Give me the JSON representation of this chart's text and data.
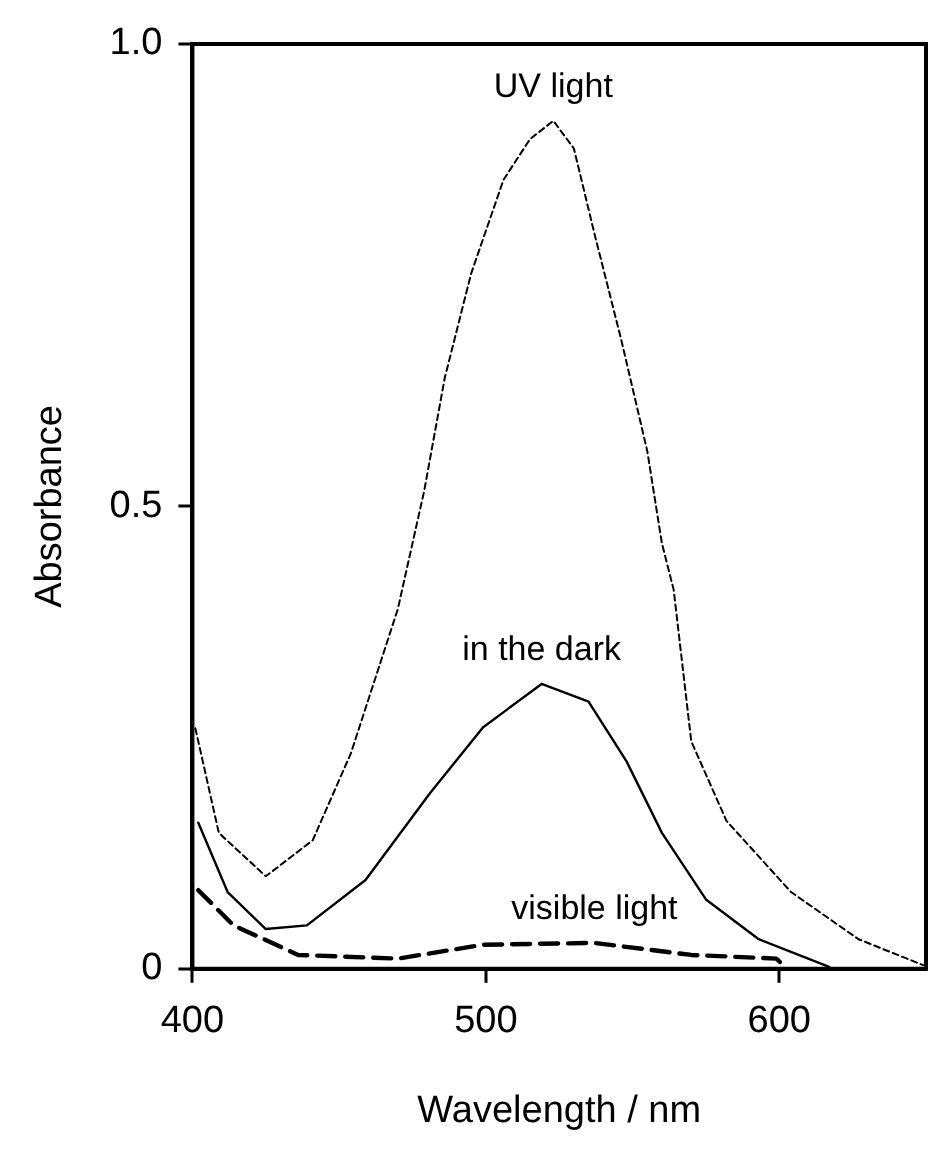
{
  "chart_data": {
    "type": "line",
    "xlabel": "Wavelength / nm",
    "ylabel": "Absorbance",
    "xlim": [
      400,
      650
    ],
    "xticks": [
      400,
      500,
      600
    ],
    "ylim": [
      0,
      1.0
    ],
    "yticks": [
      0,
      0.5,
      {
        "value": 1.0,
        "label": "1.0"
      }
    ],
    "grid": false,
    "legend": false,
    "marker": "none",
    "series": [
      {
        "name": "UV light",
        "color": "#000000",
        "line_style": "dotted",
        "x": [
          401,
          409,
          425,
          441,
          454,
          470,
          479,
          486,
          495,
          506,
          515,
          523,
          530,
          537,
          546,
          555,
          560,
          564,
          570,
          582,
          604,
          627,
          649
        ],
        "values": [
          0.26,
          0.147,
          0.1,
          0.139,
          0.233,
          0.389,
          0.517,
          0.639,
          0.752,
          0.853,
          0.897,
          0.917,
          0.887,
          0.795,
          0.682,
          0.56,
          0.46,
          0.41,
          0.246,
          0.16,
          0.083,
          0.032,
          0.004
        ]
      },
      {
        "name": "in the dark",
        "color": "#000000",
        "line_style": "solid",
        "x": [
          402,
          412,
          425,
          439,
          459,
          481,
          499,
          519,
          535,
          548,
          560,
          575,
          593,
          617
        ],
        "values": [
          0.158,
          0.083,
          0.043,
          0.047,
          0.096,
          0.19,
          0.261,
          0.308,
          0.289,
          0.224,
          0.147,
          0.075,
          0.032,
          0.002
        ]
      },
      {
        "name": "visible light",
        "color": "#000000",
        "line_style": "dashed",
        "x": [
          402,
          414,
          436,
          470,
          499,
          537,
          570,
          599,
          601
        ],
        "values": [
          0.085,
          0.047,
          0.015,
          0.011,
          0.026,
          0.028,
          0.015,
          0.011,
          0.005
        ]
      }
    ]
  }
}
